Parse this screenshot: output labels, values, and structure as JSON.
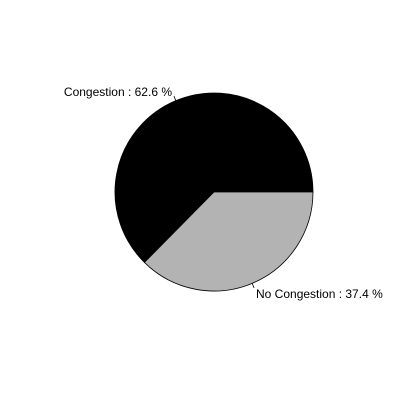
{
  "chart_data": {
    "type": "pie",
    "title": "",
    "slices": [
      {
        "label": "Congestion : 62.6 %",
        "value": 62.6,
        "color": "#000000"
      },
      {
        "label": "No Congestion : 37.4 %",
        "value": 37.4,
        "color": "#b3b3b3"
      }
    ],
    "start_angle_deg": 0,
    "direction": "clockwise"
  }
}
